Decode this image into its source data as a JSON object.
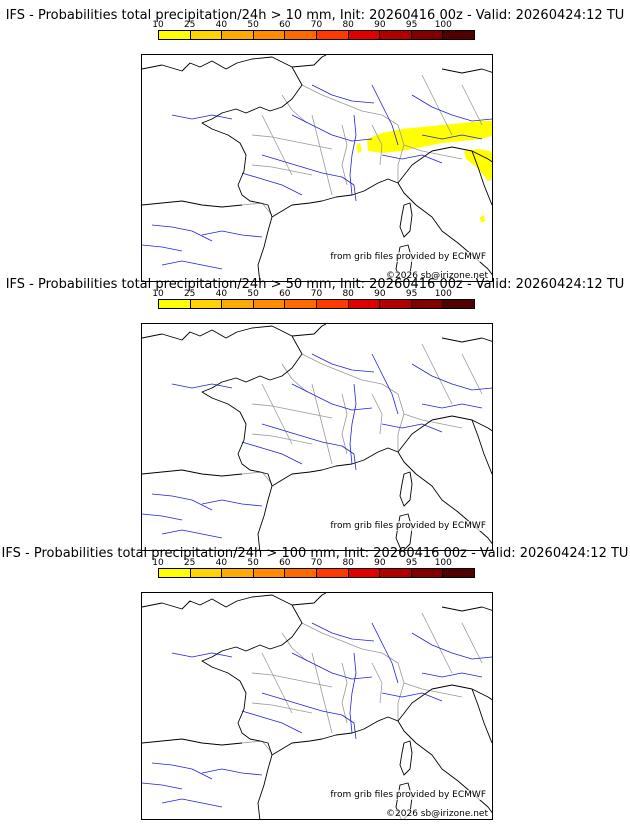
{
  "colors": {
    "scale": [
      "#ffff00",
      "#ffd400",
      "#ffaa00",
      "#ff8c00",
      "#ff6a00",
      "#ff3a00",
      "#e00000",
      "#b00000",
      "#800000",
      "#500000"
    ],
    "coast": "#000000",
    "river": "#2222dd",
    "border": "#999999",
    "precip": "#ffff00"
  },
  "scale_ticks": [
    "10",
    "25",
    "40",
    "50",
    "60",
    "70",
    "80",
    "90",
    "95",
    "100"
  ],
  "panels": [
    {
      "title": "IFS - Probabilities total precipitation/24h > 10 mm, Init: 20260416 00z - Valid: 20260424:12 TU",
      "credit": "from grib files provided by ECMWF",
      "copyright": "©2026 sb@irizone.net",
      "has_precip": true
    },
    {
      "title": "IFS - Probabilities total precipitation/24h > 50 mm, Init: 20260416 00z - Valid: 20260424:12 TU",
      "credit": "from grib files provided by ECMWF",
      "copyright": "",
      "has_precip": false
    },
    {
      "title": "IFS - Probabilities total precipitation/24h > 100 mm, Init: 20260416 00z - Valid: 20260424:12 TU",
      "credit": "from grib files provided by ECMWF",
      "copyright": "©2026 sb@irizone.net",
      "has_precip": false
    }
  ]
}
